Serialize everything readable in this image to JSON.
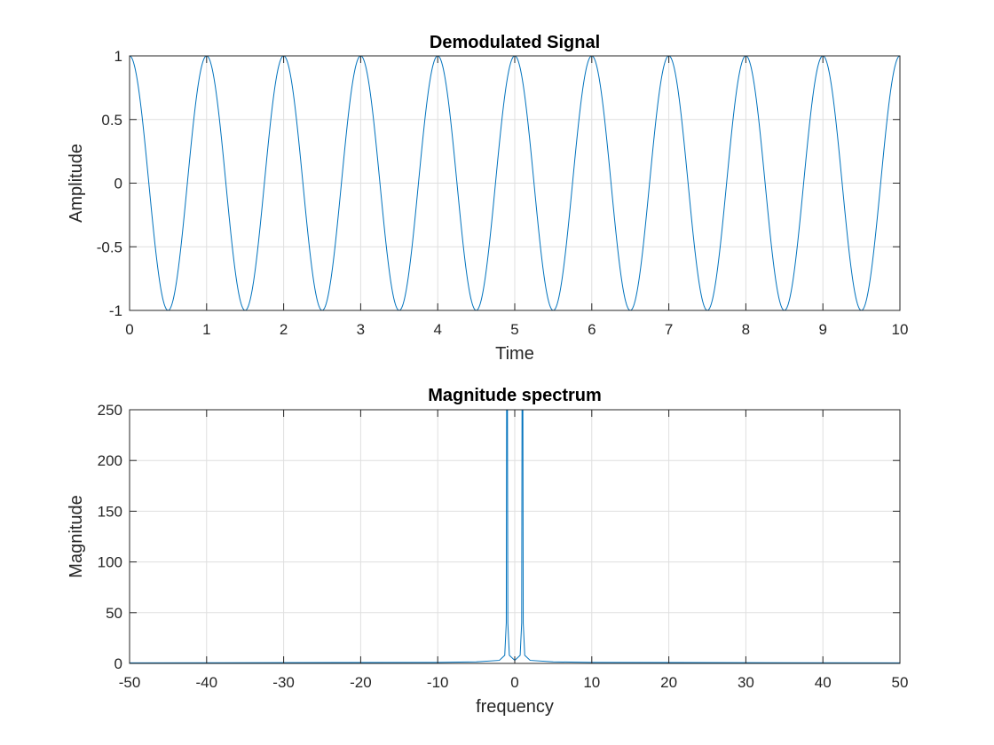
{
  "chart_data": [
    {
      "type": "line",
      "title": "Demodulated Signal",
      "xlabel": "Time",
      "ylabel": "Amplitude",
      "xlim": [
        0,
        10
      ],
      "ylim": [
        -1,
        1
      ],
      "xticks": [
        0,
        1,
        2,
        3,
        4,
        5,
        6,
        7,
        8,
        9,
        10
      ],
      "yticks": [
        -1,
        -0.5,
        0,
        0.5,
        1
      ],
      "grid": true,
      "color": "#0072bd",
      "series": [
        {
          "function": "cos",
          "frequency_hz": 1,
          "amplitude": 1
        }
      ]
    },
    {
      "type": "line",
      "title": "Magnitude spectrum",
      "xlabel": "frequency",
      "ylabel": "Magnitude",
      "xlim": [
        -50,
        50
      ],
      "ylim": [
        0,
        250
      ],
      "xticks": [
        -50,
        -40,
        -30,
        -20,
        -10,
        0,
        10,
        20,
        30,
        40,
        50
      ],
      "yticks": [
        0,
        50,
        100,
        150,
        200,
        250
      ],
      "grid": true,
      "color": "#0072bd",
      "series": [
        {
          "x": [
            -50,
            -10,
            -5,
            -2,
            -1.3,
            -1.1,
            -1,
            -0.9,
            -0.7,
            0,
            0.7,
            0.9,
            1,
            1.1,
            1.3,
            2,
            5,
            10,
            50
          ],
          "y": [
            0.5,
            1,
            1.5,
            3,
            8,
            40,
            500,
            40,
            8,
            3,
            8,
            40,
            500,
            40,
            8,
            3,
            1.5,
            1,
            0.5
          ]
        }
      ]
    }
  ]
}
